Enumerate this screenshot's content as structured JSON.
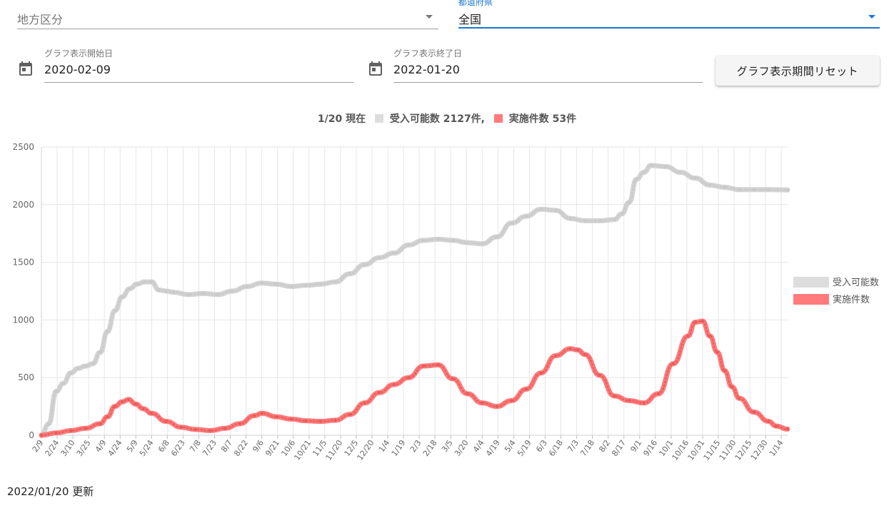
{
  "filters": {
    "region": {
      "placeholder": "地方区分",
      "value": ""
    },
    "prefecture": {
      "label": "都道府県",
      "value": "全国",
      "accent": "#1976d2"
    }
  },
  "dates": {
    "start": {
      "label": "グラフ表示開始日",
      "value": "2020-02-09",
      "icon": "calendar-icon"
    },
    "end": {
      "label": "グラフ表示終了日",
      "value": "2022-01-20",
      "icon": "calendar-icon"
    },
    "reset_label": "グラフ表示期間リセット"
  },
  "summary": {
    "date": "1/20 現在",
    "capacity_label": "受入可能数 2127件,",
    "actual_label": "実施件数 53件"
  },
  "footer": {
    "updated": "2022/01/20 更新"
  },
  "chart_data": {
    "type": "line",
    "y_ticks": [
      "0",
      "500",
      "1000",
      "1500",
      "2000",
      "2500"
    ],
    "ylim": [
      0,
      2500
    ],
    "grid": true,
    "legend_position": "right",
    "x_ticks": [
      "2/9",
      "2/24",
      "3/10",
      "3/25",
      "4/9",
      "4/24",
      "5/9",
      "5/24",
      "6/8",
      "6/23",
      "7/8",
      "7/23",
      "8/7",
      "8/22",
      "9/6",
      "9/21",
      "10/6",
      "10/21",
      "11/5",
      "11/20",
      "12/5",
      "12/20",
      "1/4",
      "1/19",
      "2/3",
      "2/18",
      "3/5",
      "3/20",
      "4/4",
      "4/19",
      "5/4",
      "5/19",
      "6/3",
      "6/18",
      "7/3",
      "7/18",
      "8/2",
      "8/17",
      "9/1",
      "9/16",
      "10/1",
      "10/16",
      "10/31",
      "11/15",
      "11/30",
      "12/15",
      "12/30",
      "1/14"
    ],
    "x_start": "2020-02-09",
    "x_end": "2022-01-20",
    "series": [
      {
        "name": "受入可能数",
        "color": "#d3d3d3",
        "points": [
          [
            "2020-02-09",
            0
          ],
          [
            "2020-02-16",
            100
          ],
          [
            "2020-02-23",
            380
          ],
          [
            "2020-03-01",
            450
          ],
          [
            "2020-03-08",
            540
          ],
          [
            "2020-03-15",
            580
          ],
          [
            "2020-03-22",
            600
          ],
          [
            "2020-03-29",
            620
          ],
          [
            "2020-04-05",
            720
          ],
          [
            "2020-04-12",
            900
          ],
          [
            "2020-04-19",
            1080
          ],
          [
            "2020-04-26",
            1200
          ],
          [
            "2020-05-03",
            1270
          ],
          [
            "2020-05-10",
            1310
          ],
          [
            "2020-05-17",
            1330
          ],
          [
            "2020-05-24",
            1330
          ],
          [
            "2020-05-31",
            1260
          ],
          [
            "2020-06-07",
            1250
          ],
          [
            "2020-06-14",
            1240
          ],
          [
            "2020-06-28",
            1220
          ],
          [
            "2020-07-12",
            1230
          ],
          [
            "2020-07-26",
            1220
          ],
          [
            "2020-08-09",
            1250
          ],
          [
            "2020-08-23",
            1290
          ],
          [
            "2020-09-06",
            1320
          ],
          [
            "2020-09-20",
            1310
          ],
          [
            "2020-10-04",
            1290
          ],
          [
            "2020-10-18",
            1300
          ],
          [
            "2020-11-01",
            1310
          ],
          [
            "2020-11-15",
            1330
          ],
          [
            "2020-11-29",
            1400
          ],
          [
            "2020-12-13",
            1480
          ],
          [
            "2020-12-27",
            1540
          ],
          [
            "2021-01-10",
            1580
          ],
          [
            "2021-01-24",
            1650
          ],
          [
            "2021-02-07",
            1690
          ],
          [
            "2021-02-21",
            1700
          ],
          [
            "2021-03-07",
            1690
          ],
          [
            "2021-03-21",
            1670
          ],
          [
            "2021-04-04",
            1660
          ],
          [
            "2021-04-18",
            1720
          ],
          [
            "2021-05-02",
            1840
          ],
          [
            "2021-05-16",
            1900
          ],
          [
            "2021-05-30",
            1960
          ],
          [
            "2021-06-13",
            1950
          ],
          [
            "2021-06-27",
            1880
          ],
          [
            "2021-07-11",
            1860
          ],
          [
            "2021-07-25",
            1860
          ],
          [
            "2021-08-08",
            1870
          ],
          [
            "2021-08-15",
            1920
          ],
          [
            "2021-08-22",
            2020
          ],
          [
            "2021-08-29",
            2220
          ],
          [
            "2021-09-05",
            2280
          ],
          [
            "2021-09-12",
            2340
          ],
          [
            "2021-09-26",
            2330
          ],
          [
            "2021-10-10",
            2280
          ],
          [
            "2021-10-24",
            2230
          ],
          [
            "2021-11-07",
            2170
          ],
          [
            "2021-11-21",
            2150
          ],
          [
            "2021-12-05",
            2130
          ],
          [
            "2021-12-19",
            2130
          ],
          [
            "2022-01-02",
            2130
          ],
          [
            "2022-01-20",
            2127
          ]
        ]
      },
      {
        "name": "実施件数",
        "color": "#ff7b7b",
        "points": [
          [
            "2020-02-09",
            0
          ],
          [
            "2020-02-23",
            20
          ],
          [
            "2020-03-08",
            40
          ],
          [
            "2020-03-22",
            60
          ],
          [
            "2020-04-05",
            100
          ],
          [
            "2020-04-12",
            160
          ],
          [
            "2020-04-19",
            250
          ],
          [
            "2020-04-26",
            290
          ],
          [
            "2020-05-02",
            310
          ],
          [
            "2020-05-09",
            270
          ],
          [
            "2020-05-16",
            230
          ],
          [
            "2020-05-24",
            190
          ],
          [
            "2020-06-07",
            120
          ],
          [
            "2020-06-21",
            70
          ],
          [
            "2020-07-05",
            50
          ],
          [
            "2020-07-19",
            40
          ],
          [
            "2020-08-02",
            60
          ],
          [
            "2020-08-16",
            100
          ],
          [
            "2020-08-30",
            170
          ],
          [
            "2020-09-06",
            190
          ],
          [
            "2020-09-20",
            160
          ],
          [
            "2020-10-04",
            140
          ],
          [
            "2020-10-18",
            125
          ],
          [
            "2020-11-01",
            120
          ],
          [
            "2020-11-15",
            130
          ],
          [
            "2020-11-29",
            180
          ],
          [
            "2020-12-13",
            280
          ],
          [
            "2020-12-27",
            370
          ],
          [
            "2021-01-10",
            440
          ],
          [
            "2021-01-24",
            500
          ],
          [
            "2021-02-07",
            600
          ],
          [
            "2021-02-21",
            610
          ],
          [
            "2021-03-07",
            490
          ],
          [
            "2021-03-21",
            360
          ],
          [
            "2021-04-04",
            280
          ],
          [
            "2021-04-18",
            250
          ],
          [
            "2021-05-02",
            300
          ],
          [
            "2021-05-16",
            400
          ],
          [
            "2021-05-30",
            540
          ],
          [
            "2021-06-13",
            690
          ],
          [
            "2021-06-27",
            750
          ],
          [
            "2021-07-04",
            740
          ],
          [
            "2021-07-11",
            700
          ],
          [
            "2021-07-25",
            520
          ],
          [
            "2021-08-08",
            340
          ],
          [
            "2021-08-22",
            300
          ],
          [
            "2021-09-05",
            280
          ],
          [
            "2021-09-19",
            360
          ],
          [
            "2021-10-03",
            620
          ],
          [
            "2021-10-17",
            860
          ],
          [
            "2021-10-24",
            980
          ],
          [
            "2021-10-31",
            990
          ],
          [
            "2021-11-07",
            860
          ],
          [
            "2021-11-14",
            720
          ],
          [
            "2021-11-21",
            560
          ],
          [
            "2021-11-28",
            420
          ],
          [
            "2021-12-05",
            320
          ],
          [
            "2021-12-19",
            200
          ],
          [
            "2022-01-02",
            120
          ],
          [
            "2022-01-09",
            80
          ],
          [
            "2022-01-20",
            53
          ]
        ]
      }
    ]
  }
}
